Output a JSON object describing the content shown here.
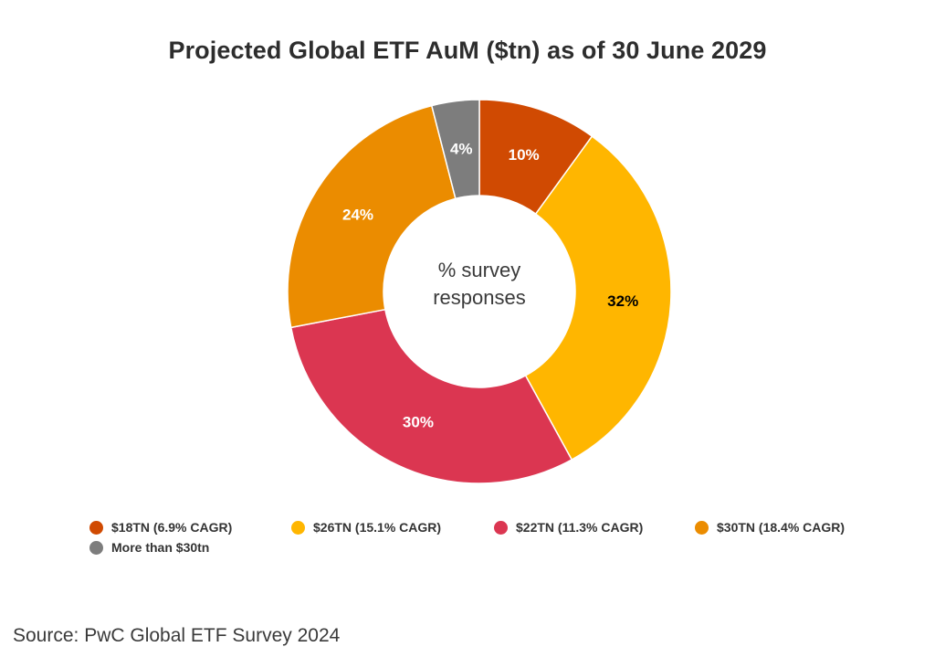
{
  "chart_data": {
    "type": "pie",
    "variant": "donut",
    "title": "Projected Global ETF AuM ($tn) as of 30 June 2029",
    "center_label": [
      "% survey",
      "responses"
    ],
    "slices": [
      {
        "name": "$18TN (6.9% CAGR)",
        "value": 10,
        "label": "10%",
        "color": "#d04a02",
        "label_color": "#ffffff"
      },
      {
        "name": "$26TN (15.1% CAGR)",
        "value": 32,
        "label": "32%",
        "color": "#ffb600",
        "label_color": "#000000"
      },
      {
        "name": "$22TN (11.3% CAGR)",
        "value": 30,
        "label": "30%",
        "color": "#db3651",
        "label_color": "#ffffff"
      },
      {
        "name": "$30TN (18.4% CAGR)",
        "value": 24,
        "label": "24%",
        "color": "#eb8c00",
        "label_color": "#ffffff"
      },
      {
        "name": "More than $30tn",
        "value": 4,
        "label": "4%",
        "color": "#7d7d7d",
        "label_color": "#ffffff"
      }
    ],
    "legend_position": "bottom"
  },
  "source": "Source: PwC Global ETF Survey 2024"
}
